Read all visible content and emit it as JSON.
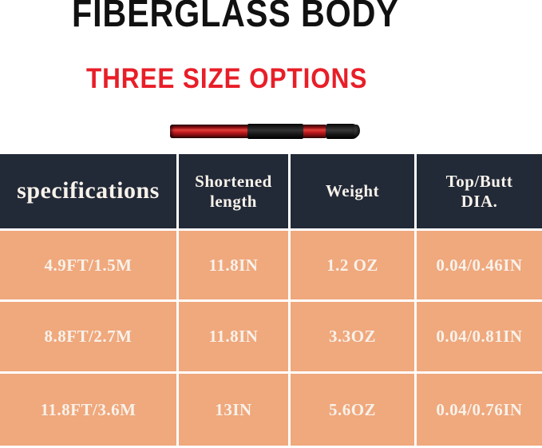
{
  "page": {
    "background": "#ffffff"
  },
  "title": {
    "text": "FIBERGLASS BODY",
    "color": "#111111"
  },
  "subtitle": {
    "text": "THREE SIZE OPTIONS",
    "color": "#e81e28"
  },
  "rod_image": {
    "description": "telescopic fiberglass rod, red and black sections",
    "colors": {
      "red": "#c01a1e",
      "red_highlight": "#e0403a",
      "black": "#1b1b1b",
      "cap": "#101010"
    }
  },
  "table": {
    "header_bg": "#222937",
    "row_bg": "#f0a87d",
    "grid_color": "#ffffff",
    "text_color": "#f7f2ea",
    "columns": [
      {
        "label": "specifications"
      },
      {
        "label": "Shortened length",
        "line1": "Shortened",
        "line2": "length"
      },
      {
        "label": "Weight"
      },
      {
        "label": "Top/Butt DIA.",
        "line1": "Top/Butt",
        "line2": "DIA."
      }
    ],
    "rows": [
      {
        "spec": "4.9FT/1.5M",
        "shortened": "11.8IN",
        "weight": "1.2 OZ",
        "dia": "0.04/0.46IN"
      },
      {
        "spec": "8.8FT/2.7M",
        "shortened": "11.8IN",
        "weight": "3.3OZ",
        "dia": "0.04/0.81IN"
      },
      {
        "spec": "11.8FT/3.6M",
        "shortened": "13IN",
        "weight": "5.6OZ",
        "dia": "0.04/0.76IN"
      }
    ]
  }
}
